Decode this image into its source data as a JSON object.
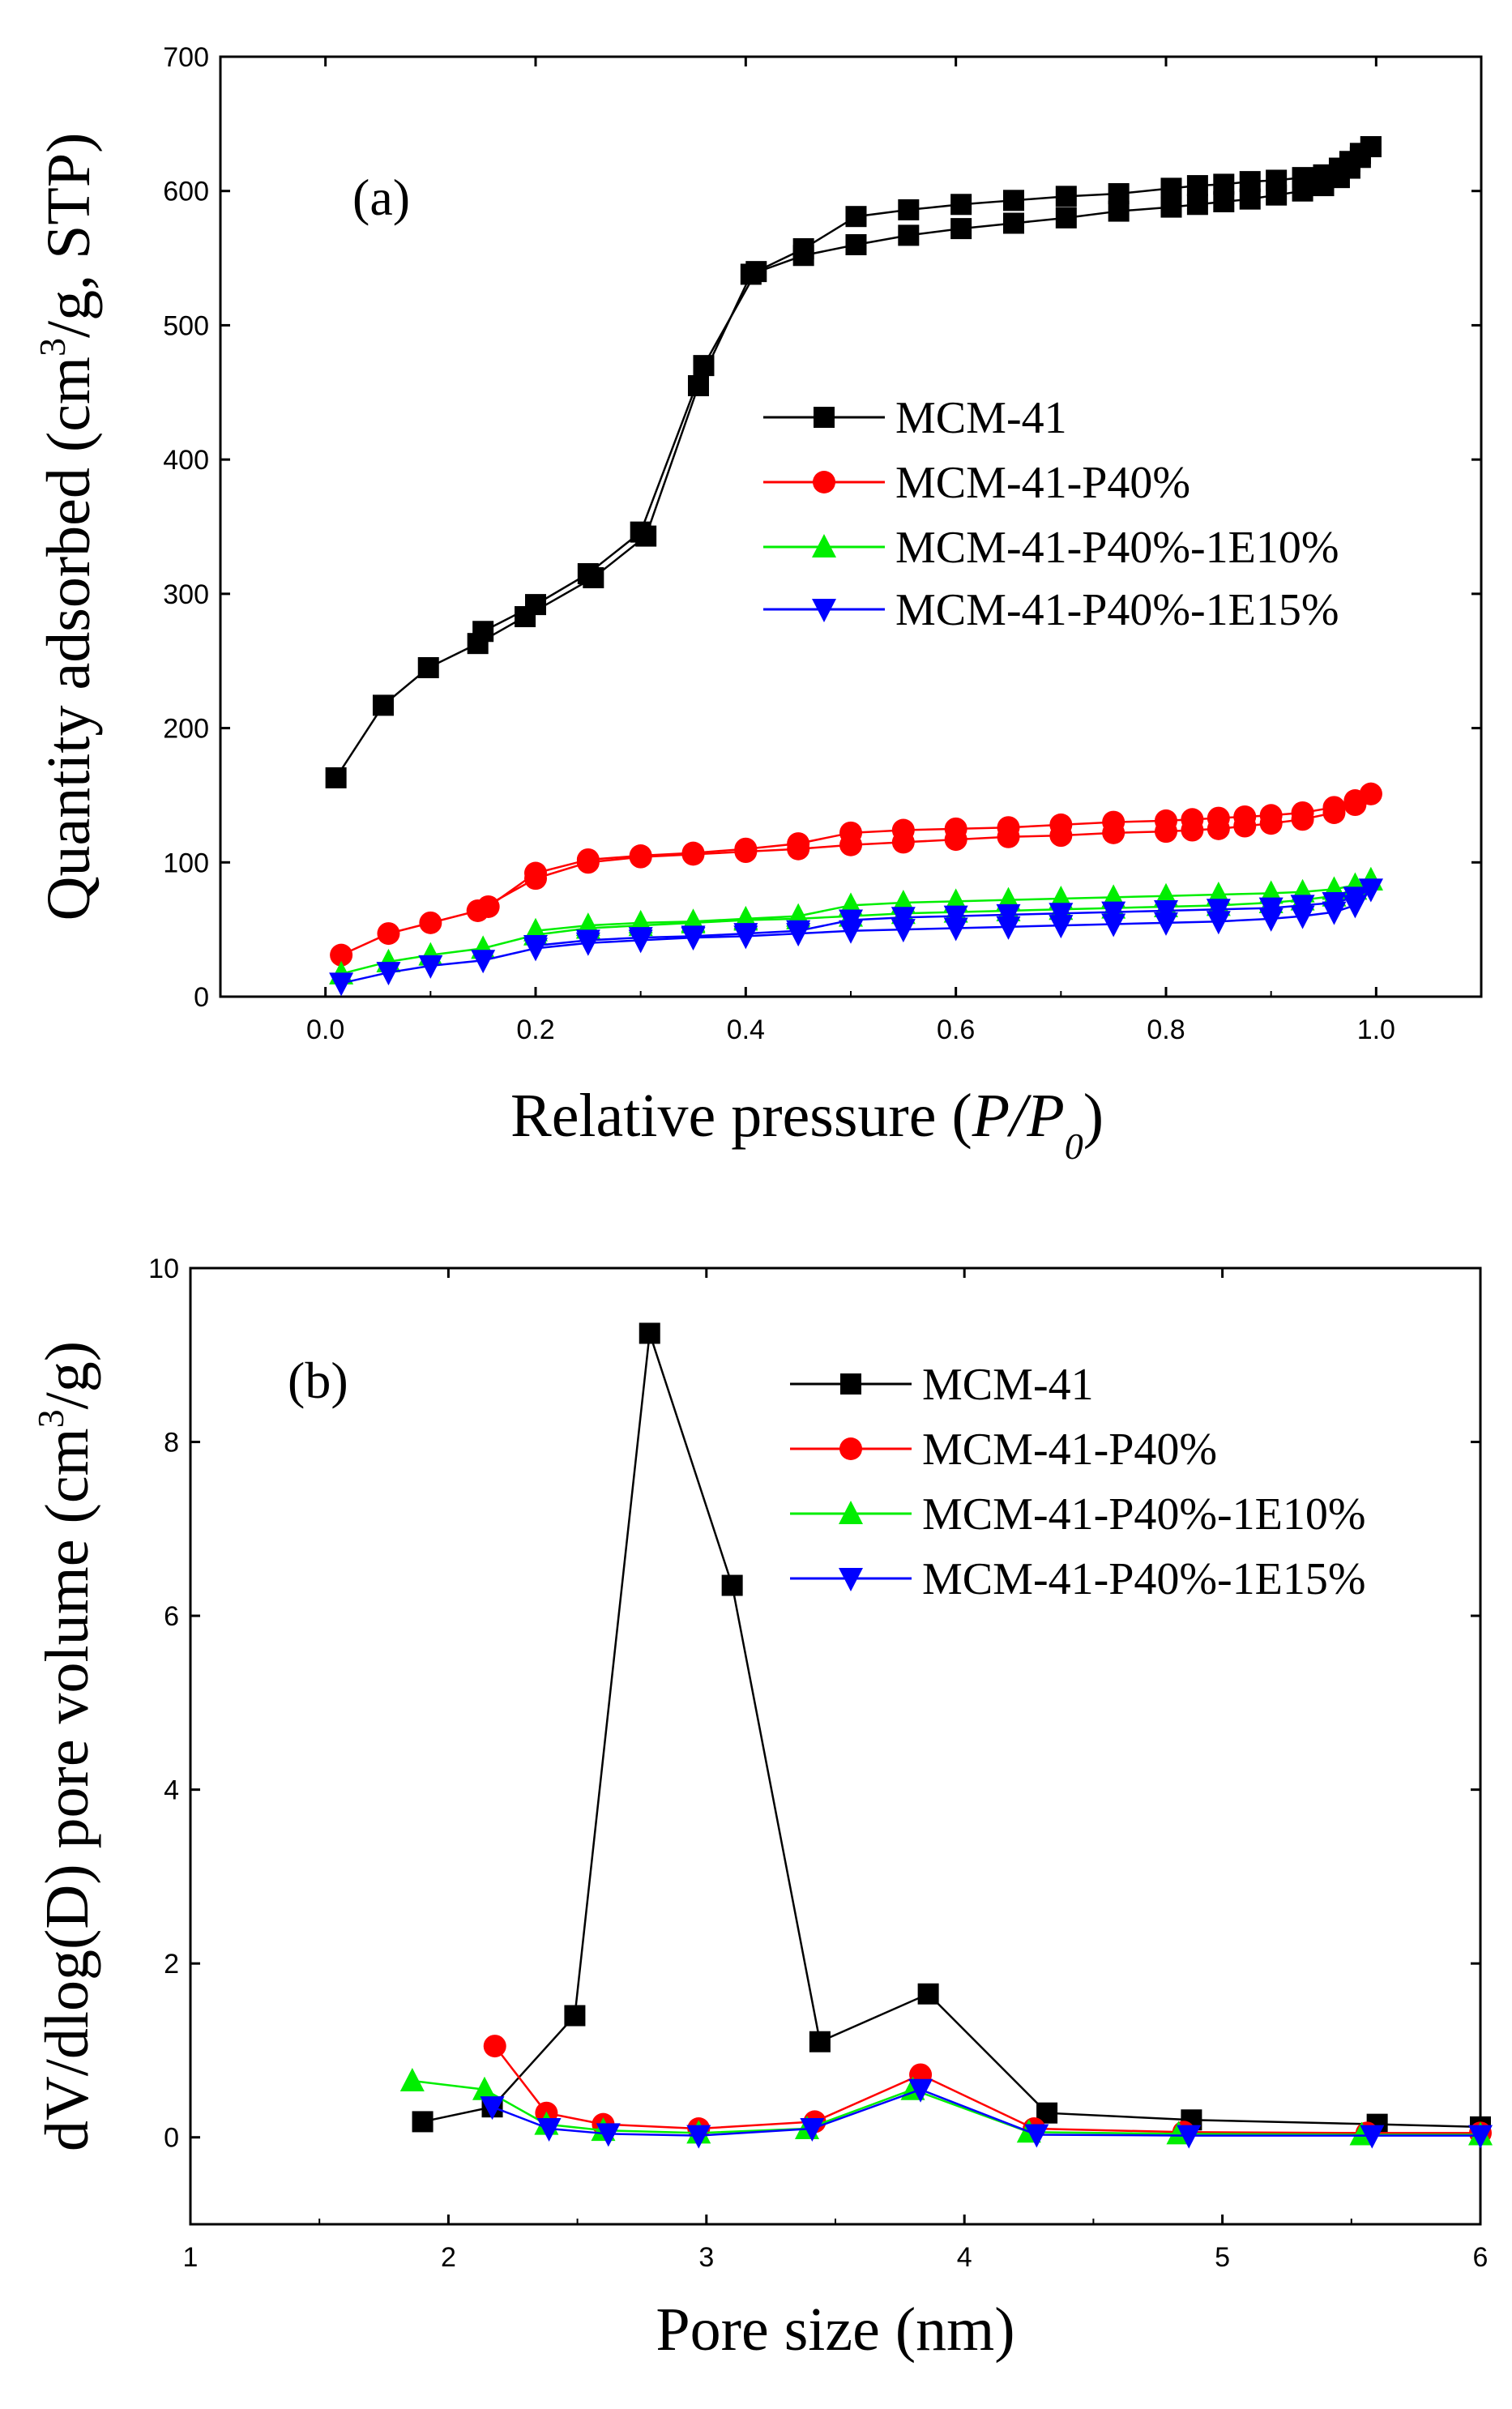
{
  "chart_data": [
    {
      "type": "line",
      "panel_label": "(a)",
      "xlabel_prefix": "Relative pressure (",
      "xlabel_italic": "P/P",
      "xlabel_sub": "0",
      "xlabel_suffix": ")",
      "ylabel_prefix": "Quantity adsorbed (cm",
      "ylabel_sup": "3",
      "ylabel_suffix": "/g, STP)",
      "xlim": [
        -0.1,
        1.1
      ],
      "ylim": [
        0,
        700
      ],
      "xticks": [
        0.0,
        0.2,
        0.4,
        0.6,
        0.8,
        1.0
      ],
      "xtick_labels": [
        "0.0",
        "0.2",
        "0.4",
        "0.6",
        "0.8",
        "1.0"
      ],
      "yticks": [
        0,
        100,
        200,
        300,
        400,
        500,
        600,
        700
      ],
      "ytick_labels": [
        "0",
        "100",
        "200",
        "300",
        "400",
        "500",
        "600",
        "700"
      ],
      "legend_position": "middle-right",
      "series": [
        {
          "name": "MCM-41",
          "color": "#000000",
          "marker": "square",
          "adsorption": {
            "x": [
              0.01,
              0.055,
              0.098,
              0.145,
              0.19,
              0.255,
              0.305,
              0.355,
              0.405,
              0.455,
              0.505,
              0.555,
              0.605,
              0.655,
              0.705,
              0.755,
              0.805,
              0.83,
              0.855,
              0.88,
              0.905,
              0.93,
              0.95,
              0.965,
              0.975,
              0.985,
              0.995
            ],
            "y": [
              163,
              217,
              245,
              263,
              283,
              312,
              343,
              455,
              538,
              552,
              560,
              567,
              572,
              576,
              580,
              585,
              588,
              590,
              592,
              594,
              597,
              600,
              604,
              610,
              617,
              625,
              633
            ]
          },
          "desorption": {
            "x": [
              0.995,
              0.985,
              0.975,
              0.965,
              0.95,
              0.93,
              0.905,
              0.88,
              0.855,
              0.83,
              0.805,
              0.755,
              0.705,
              0.655,
              0.605,
              0.555,
              0.505,
              0.455,
              0.41,
              0.36,
              0.3,
              0.25,
              0.2,
              0.15
            ],
            "y": [
              633,
              628,
              622,
              617,
              612,
              610,
              608,
              607,
              605,
              604,
              602,
              598,
              596,
              593,
              590,
              586,
              581,
              557,
              540,
              470,
              346,
              315,
              292,
              272
            ]
          }
        },
        {
          "name": "MCM-41-P40%",
          "color": "#ff0000",
          "marker": "circle",
          "adsorption": {
            "x": [
              0.015,
              0.06,
              0.1,
              0.145,
              0.2,
              0.25,
              0.3,
              0.35,
              0.4,
              0.45,
              0.5,
              0.55,
              0.6,
              0.65,
              0.7,
              0.75,
              0.8,
              0.825,
              0.85,
              0.875,
              0.9,
              0.93,
              0.96,
              0.98,
              0.995
            ],
            "y": [
              31,
              47,
              55,
              64,
              88,
              100,
              104,
              106,
              108,
              110,
              113,
              115,
              117,
              119,
              120,
              122,
              123,
              124,
              125,
              127,
              129,
              132,
              137,
              143,
              151
            ]
          },
          "desorption": {
            "x": [
              0.995,
              0.98,
              0.96,
              0.93,
              0.9,
              0.875,
              0.85,
              0.825,
              0.8,
              0.75,
              0.7,
              0.65,
              0.6,
              0.55,
              0.5,
              0.45,
              0.4,
              0.35,
              0.3,
              0.25,
              0.2,
              0.155
            ],
            "y": [
              151,
              146,
              141,
              137,
              135,
              134,
              133,
              132,
              131,
              130,
              128,
              126,
              125,
              124,
              122,
              114,
              110,
              107,
              105,
              102,
              92,
              67
            ]
          }
        },
        {
          "name": "MCM-41-P40%-1E10%",
          "color": "#00ee00",
          "marker": "triangle-up",
          "adsorption": {
            "x": [
              0.015,
              0.06,
              0.1,
              0.15,
              0.2,
              0.25,
              0.3,
              0.35,
              0.4,
              0.45,
              0.5,
              0.55,
              0.6,
              0.65,
              0.7,
              0.75,
              0.8,
              0.85,
              0.9,
              0.93,
              0.96,
              0.98,
              0.995
            ],
            "y": [
              17,
              26,
              31,
              36,
              46,
              51,
              53,
              55,
              57,
              58,
              60,
              62,
              63,
              64,
              65,
              66,
              67,
              68,
              70,
              72,
              75,
              80,
              87
            ]
          },
          "desorption": {
            "x": [
              0.995,
              0.98,
              0.96,
              0.93,
              0.9,
              0.85,
              0.8,
              0.75,
              0.7,
              0.65,
              0.6,
              0.55,
              0.5,
              0.45,
              0.4,
              0.35,
              0.3,
              0.25,
              0.2
            ],
            "y": [
              87,
              83,
              80,
              78,
              77,
              76,
              75,
              74,
              73,
              72,
              71,
              70,
              68,
              60,
              58,
              56,
              55,
              53,
              49
            ]
          }
        },
        {
          "name": "MCM-41-P40%-1E15%",
          "color": "#0000ff",
          "marker": "triangle-down",
          "adsorption": {
            "x": [
              0.015,
              0.06,
              0.1,
              0.15,
              0.2,
              0.25,
              0.3,
              0.35,
              0.4,
              0.45,
              0.5,
              0.55,
              0.6,
              0.65,
              0.7,
              0.75,
              0.8,
              0.85,
              0.9,
              0.93,
              0.96,
              0.98,
              0.995
            ],
            "y": [
              10,
              18,
              23,
              27,
              36,
              40,
              42,
              44,
              45,
              47,
              49,
              50,
              51,
              52,
              53,
              54,
              55,
              56,
              58,
              60,
              63,
              68,
              80
            ]
          },
          "desorption": {
            "x": [
              0.995,
              0.98,
              0.96,
              0.93,
              0.9,
              0.85,
              0.8,
              0.75,
              0.7,
              0.65,
              0.6,
              0.55,
              0.5,
              0.45,
              0.4,
              0.35,
              0.3,
              0.25,
              0.2
            ],
            "y": [
              80,
              74,
              70,
              68,
              66,
              65,
              64,
              63,
              62,
              61,
              60,
              59,
              57,
              49,
              47,
              45,
              44,
              42,
              38
            ]
          }
        }
      ]
    },
    {
      "type": "line",
      "panel_label": "(b)",
      "xlabel": "Pore size (nm)",
      "ylabel_prefix": "dV/dlog(D) pore volume (cm",
      "ylabel_sup": "3",
      "ylabel_suffix": "/g)",
      "xlim": [
        1,
        6
      ],
      "ylim": [
        -1,
        10
      ],
      "xticks": [
        1,
        2,
        3,
        4,
        5,
        6
      ],
      "xtick_labels": [
        "1",
        "2",
        "3",
        "4",
        "5",
        "6"
      ],
      "yticks": [
        0,
        2,
        4,
        6,
        8,
        10
      ],
      "ytick_labels": [
        "0",
        "2",
        "4",
        "6",
        "8",
        "10"
      ],
      "legend_position": "top-right",
      "series": [
        {
          "name": "MCM-41",
          "color": "#000000",
          "marker": "square",
          "x": [
            1.9,
            2.17,
            2.49,
            2.78,
            3.1,
            3.44,
            3.86,
            4.32,
            4.88,
            5.6,
            6.0
          ],
          "y": [
            0.18,
            0.35,
            1.4,
            9.25,
            6.35,
            1.1,
            1.65,
            0.28,
            0.2,
            0.15,
            0.12
          ]
        },
        {
          "name": "MCM-41-P40%",
          "color": "#ff0000",
          "marker": "circle",
          "x": [
            2.18,
            2.38,
            2.6,
            2.97,
            3.42,
            3.83,
            4.27,
            4.85,
            5.56,
            6.0
          ],
          "y": [
            1.05,
            0.28,
            0.15,
            0.1,
            0.18,
            0.72,
            0.1,
            0.06,
            0.05,
            0.05
          ]
        },
        {
          "name": "MCM-41-P40%-1E10%",
          "color": "#00ee00",
          "marker": "triangle-up",
          "x": [
            1.86,
            2.14,
            2.38,
            2.6,
            2.97,
            3.39,
            3.8,
            4.25,
            4.83,
            5.54,
            6.0
          ],
          "y": [
            0.65,
            0.55,
            0.15,
            0.08,
            0.05,
            0.1,
            0.55,
            0.06,
            0.04,
            0.03,
            0.03
          ]
        },
        {
          "name": "MCM-41-P40%-1E15%",
          "color": "#0000ff",
          "marker": "triangle-down",
          "x": [
            2.17,
            2.39,
            2.62,
            2.97,
            3.41,
            3.83,
            4.28,
            4.87,
            5.58,
            6.0
          ],
          "y": [
            0.35,
            0.1,
            0.04,
            0.02,
            0.1,
            0.55,
            0.03,
            0.02,
            0.02,
            0.02
          ]
        }
      ]
    }
  ]
}
